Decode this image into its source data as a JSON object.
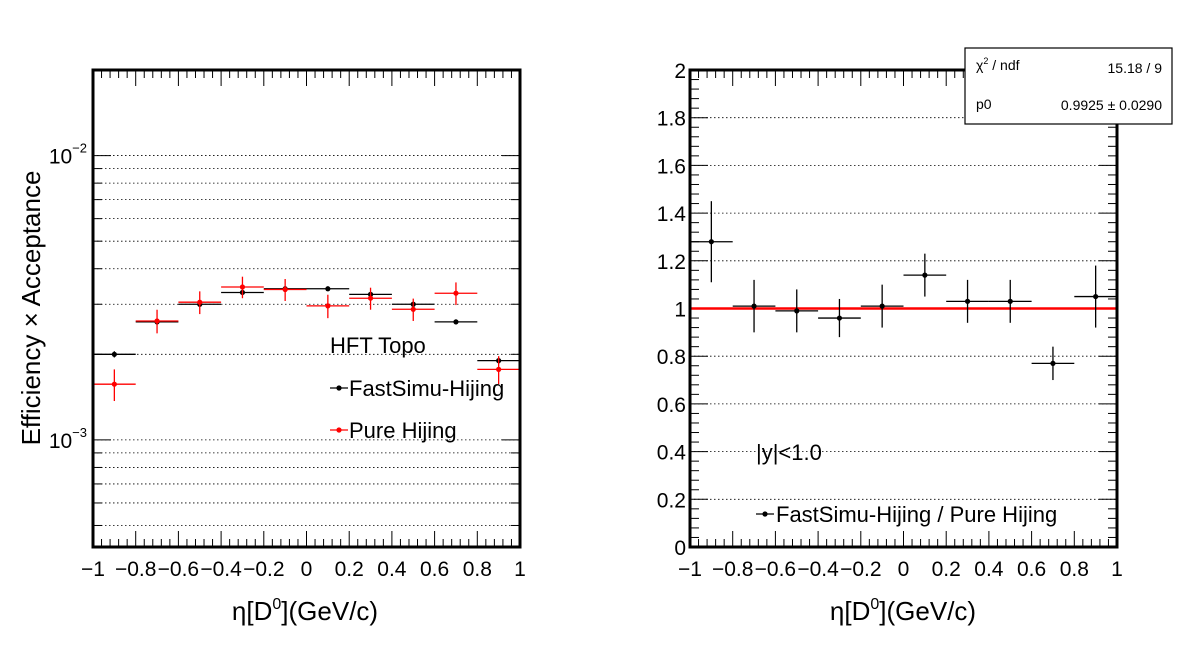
{
  "chart_data": [
    {
      "type": "scatter",
      "x_label_main": "η[D",
      "x_label_sup": "0",
      "x_label_end": "](GeV/c)",
      "y_label": "Efficiency × Acceptance",
      "y_scale": "log",
      "xlim": [
        -1,
        1
      ],
      "ylim": [
        0.00042,
        0.02
      ],
      "x_ticks": [
        "−1",
        "−0.8",
        "−0.6",
        "−0.4",
        "−0.2",
        "0",
        "0.2",
        "0.4",
        "0.6",
        "0.8",
        "1"
      ],
      "y_ticks": [
        {
          "value": 0.01,
          "base": "10",
          "exp": "−2"
        },
        {
          "value": 0.001,
          "base": "10",
          "exp": "−3"
        }
      ],
      "grid": "horizontal dotted",
      "legend": {
        "header": "HFT Topo",
        "entries": [
          "FastSimu-Hijing",
          "Pure Hijing"
        ]
      },
      "series": [
        {
          "name": "FastSimu-Hijing",
          "color": "#000000",
          "x": [
            -0.9,
            -0.7,
            -0.5,
            -0.3,
            -0.1,
            0.1,
            0.3,
            0.5,
            0.7,
            0.9
          ],
          "y": [
            0.002,
            0.0026,
            0.003,
            0.0033,
            0.0034,
            0.0034,
            0.00325,
            0.003,
            0.0026,
            0.0019
          ],
          "yerr": [
            5e-05,
            5e-05,
            5e-05,
            6e-05,
            6e-05,
            6e-05,
            6e-05,
            6e-05,
            5e-05,
            5e-05
          ]
        },
        {
          "name": "Pure Hijing",
          "color": "#ff0000",
          "x": [
            -0.9,
            -0.7,
            -0.5,
            -0.3,
            -0.1,
            0.1,
            0.3,
            0.5,
            0.7,
            0.9
          ],
          "y": [
            0.00157,
            0.00262,
            0.00305,
            0.00345,
            0.00338,
            0.00296,
            0.00315,
            0.00288,
            0.00328,
            0.00177
          ],
          "yerr": [
            0.0002,
            0.00025,
            0.00028,
            0.0003,
            0.0003,
            0.00028,
            0.00028,
            0.00026,
            0.0003,
            0.0002
          ]
        }
      ]
    },
    {
      "type": "scatter",
      "x_label_main": "η[D",
      "x_label_sup": "0",
      "x_label_end": "](GeV/c)",
      "xlim": [
        -1,
        1
      ],
      "ylim": [
        0,
        2
      ],
      "x_ticks": [
        "−1",
        "−0.8",
        "−0.6",
        "−0.4",
        "−0.2",
        "0",
        "0.2",
        "0.4",
        "0.6",
        "0.8",
        "1"
      ],
      "y_ticks": [
        "0",
        "0.2",
        "0.4",
        "0.6",
        "0.8",
        "1",
        "1.2",
        "1.4",
        "1.6",
        "1.8",
        "2"
      ],
      "grid": "horizontal dotted",
      "annotation": "|y|<1.0",
      "legend": {
        "entries": [
          "FastSimu-Hijing / Pure Hijing"
        ]
      },
      "fit_line": {
        "y": 1.0,
        "color": "#ff0000"
      },
      "stats_box": {
        "row1_label_main": "χ",
        "row1_label_sup": "2",
        "row1_label_end": " / ndf",
        "row1_value": "15.18 / 9",
        "row2_label": "p0",
        "row2_value": "0.9925 ± 0.0290"
      },
      "series": [
        {
          "name": "FastSimu-Hijing / Pure Hijing",
          "color": "#000000",
          "x": [
            -0.9,
            -0.7,
            -0.5,
            -0.3,
            -0.1,
            0.1,
            0.3,
            0.5,
            0.7,
            0.9
          ],
          "y": [
            1.28,
            1.01,
            0.99,
            0.96,
            1.01,
            1.14,
            1.03,
            1.03,
            0.77,
            1.05
          ],
          "yerr": [
            0.17,
            0.11,
            0.09,
            0.08,
            0.09,
            0.09,
            0.09,
            0.09,
            0.07,
            0.13
          ]
        }
      ]
    }
  ]
}
